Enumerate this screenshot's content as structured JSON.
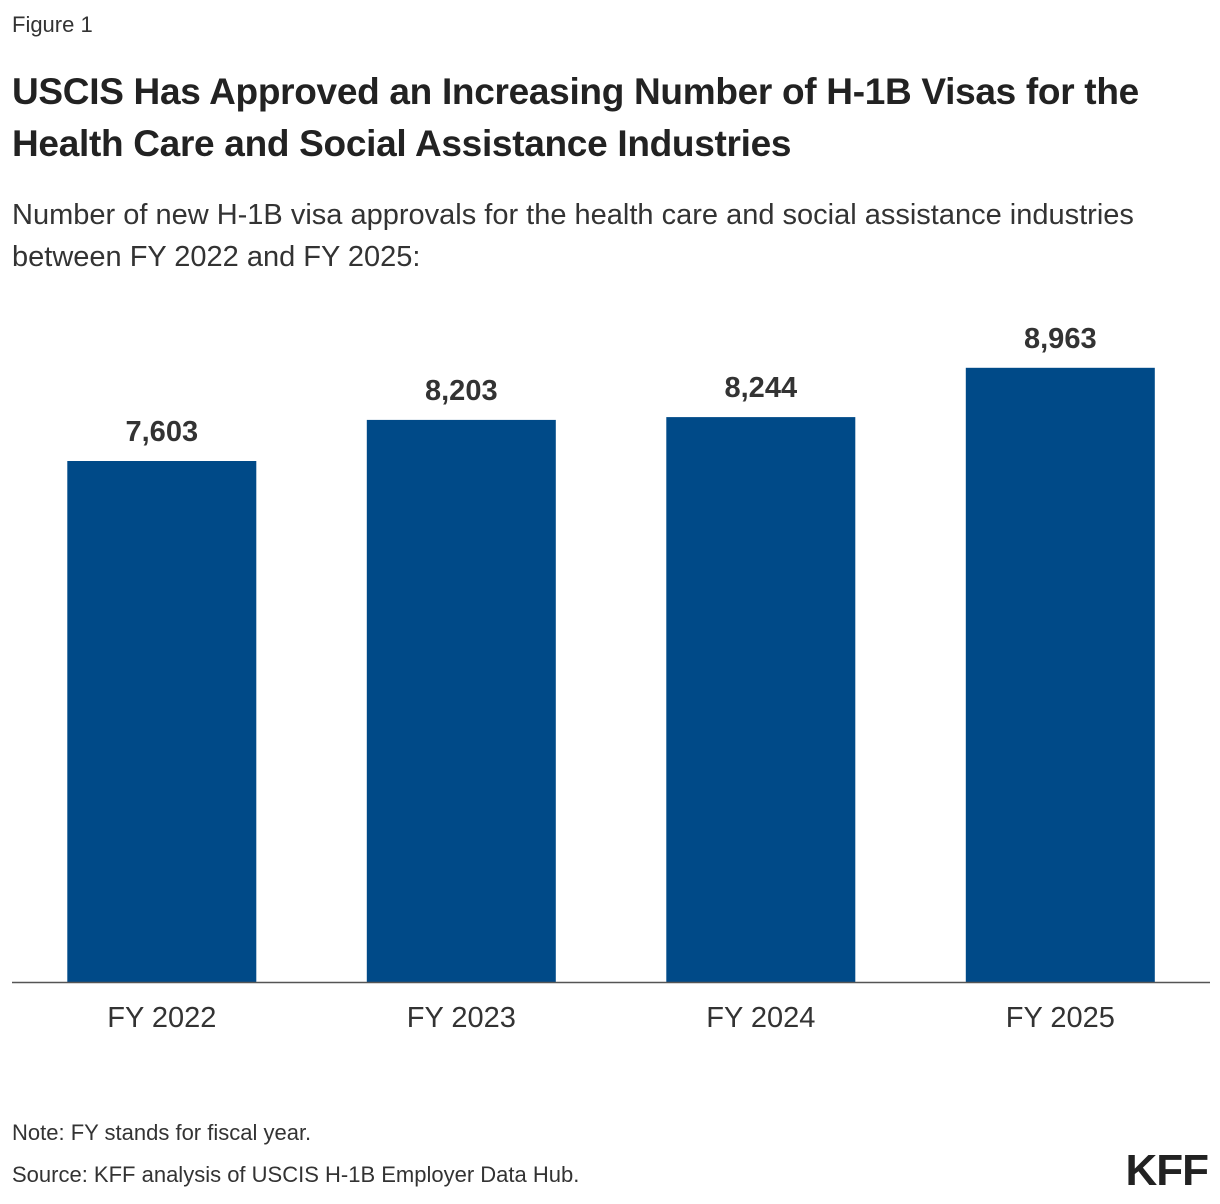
{
  "figure_label": "Figure 1",
  "title": "USCIS Has Approved an Increasing Number of H-1B Visas for the Health Care and Social Assistance Industries",
  "subtitle": "Number of new H-1B visa approvals for the health care and social assistance industries between FY 2022 and FY 2025:",
  "note": "Note: FY stands for fiscal year.",
  "source": "Source: KFF analysis of USCIS H-1B Employer Data Hub.",
  "logo_text": "KFF",
  "colors": {
    "bar": "#004a88",
    "axis": "#555555"
  },
  "chart_data": {
    "type": "bar",
    "title": "USCIS Has Approved an Increasing Number of H-1B Visas for the Health Care and Social Assistance Industries",
    "xlabel": "",
    "ylabel": "",
    "categories": [
      "FY 2022",
      "FY 2023",
      "FY 2024",
      "FY 2025"
    ],
    "values": [
      7603,
      8203,
      8244,
      8963
    ],
    "value_labels": [
      "7,603",
      "8,203",
      "8,244",
      "8,963"
    ],
    "ylim": [
      0,
      10000
    ],
    "grid": false,
    "legend": "none"
  }
}
